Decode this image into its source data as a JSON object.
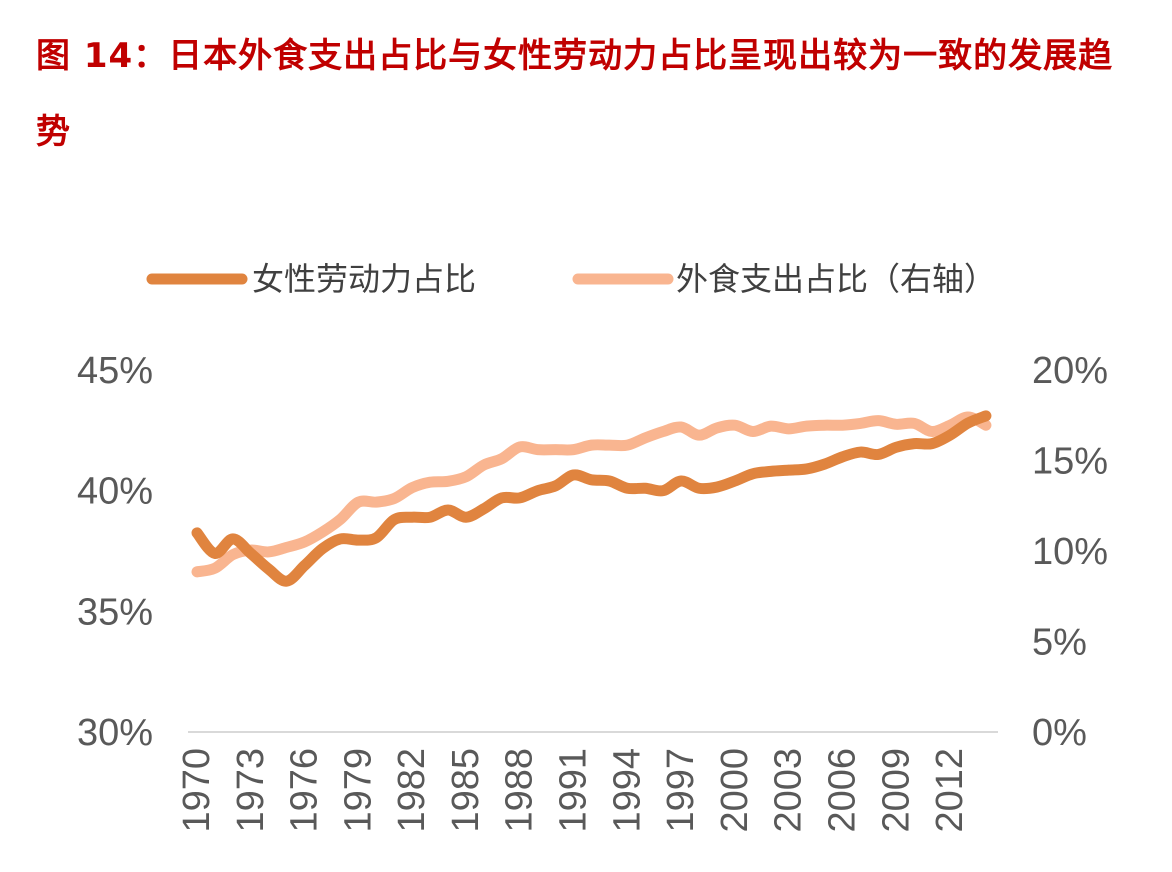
{
  "title": "图 14：日本外食支出占比与女性劳动力占比呈现出较为一致的发展趋势",
  "chart_data": {
    "type": "line",
    "title": "图 14：日本外食支出占比与女性劳动力占比呈现出较为一致的发展趋势",
    "legend_position": "top",
    "grid": false,
    "x": [
      1970,
      1971,
      1972,
      1973,
      1974,
      1975,
      1976,
      1977,
      1978,
      1979,
      1980,
      1981,
      1982,
      1983,
      1984,
      1985,
      1986,
      1987,
      1988,
      1989,
      1990,
      1991,
      1992,
      1993,
      1994,
      1995,
      1996,
      1997,
      1998,
      1999,
      2000,
      2001,
      2002,
      2003,
      2004,
      2005,
      2006,
      2007,
      2008,
      2009,
      2010,
      2011,
      2012,
      2013,
      2014
    ],
    "x_tick_labels": [
      "1970",
      "1973",
      "1976",
      "1979",
      "1982",
      "1985",
      "1988",
      "1991",
      "1994",
      "1997",
      "2000",
      "2003",
      "2006",
      "2009",
      "2012"
    ],
    "y_left": {
      "range": [
        30,
        45
      ],
      "ticks": [
        "30%",
        "35%",
        "40%",
        "45%"
      ]
    },
    "y_right": {
      "range": [
        0,
        20
      ],
      "ticks": [
        "0%",
        "5%",
        "10%",
        "15%",
        "20%"
      ]
    },
    "series": [
      {
        "name": "女性劳动力占比",
        "axis": "left",
        "color": "#E0843F",
        "values": [
          38.25,
          37.4,
          38.0,
          37.4,
          36.75,
          36.25,
          36.9,
          37.6,
          38.0,
          37.95,
          38.05,
          38.8,
          38.9,
          38.9,
          39.2,
          38.9,
          39.25,
          39.7,
          39.7,
          40.0,
          40.2,
          40.65,
          40.45,
          40.4,
          40.1,
          40.1,
          40.0,
          40.4,
          40.1,
          40.15,
          40.4,
          40.7,
          40.8,
          40.85,
          40.9,
          41.1,
          41.4,
          41.6,
          41.5,
          41.8,
          41.95,
          41.95,
          42.3,
          42.8,
          43.1
        ]
      },
      {
        "name": "外食支出占比（右轴）",
        "axis": "right",
        "color": "#F9B590",
        "values": [
          8.85,
          9.05,
          9.8,
          10.05,
          9.95,
          10.2,
          10.5,
          11.05,
          11.75,
          12.7,
          12.7,
          12.9,
          13.5,
          13.8,
          13.85,
          14.1,
          14.75,
          15.1,
          15.75,
          15.6,
          15.6,
          15.6,
          15.85,
          15.85,
          15.85,
          16.25,
          16.6,
          16.85,
          16.4,
          16.8,
          16.95,
          16.6,
          16.9,
          16.75,
          16.9,
          16.95,
          16.95,
          17.05,
          17.2,
          17.0,
          17.05,
          16.6,
          16.95,
          17.4,
          16.95
        ]
      }
    ]
  }
}
